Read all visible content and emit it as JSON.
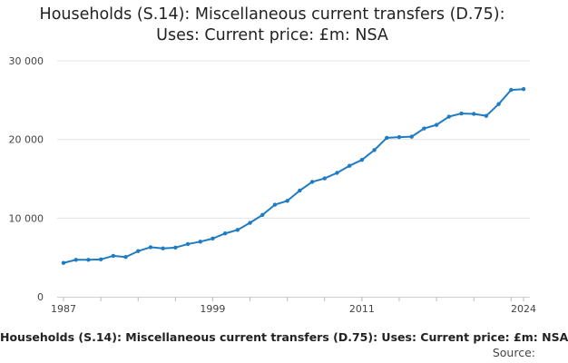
{
  "chart_data": {
    "type": "line",
    "title_line1": "Households (S.14): Miscellaneous current transfers (D.75):",
    "title_line2": "Uses: Current price: £m: NSA",
    "footer_title": "Households (S.14): Miscellaneous current transfers (D.75): Uses: Current price: £m: NSA",
    "source_label": "Source:",
    "xlabel": "",
    "ylabel": "",
    "xlim": [
      1987,
      2024
    ],
    "ylim": [
      0,
      30000
    ],
    "x_ticks": [
      1987,
      1999,
      2011,
      2024
    ],
    "x_tick_labels": [
      "1987",
      "1999",
      "2011",
      "2024"
    ],
    "y_ticks": [
      0,
      10000,
      20000,
      30000
    ],
    "y_tick_labels": [
      "0",
      "10 000",
      "20 000",
      "30 000"
    ],
    "grid": "horizontal",
    "legend": "none",
    "color": "#1f7cc2",
    "x": [
      1987,
      1988,
      1989,
      1990,
      1991,
      1992,
      1993,
      1994,
      1995,
      1996,
      1997,
      1998,
      1999,
      2000,
      2001,
      2002,
      2003,
      2004,
      2005,
      2006,
      2007,
      2008,
      2009,
      2010,
      2011,
      2012,
      2013,
      2014,
      2015,
      2016,
      2017,
      2018,
      2019,
      2020,
      2021,
      2022,
      2023,
      2024
    ],
    "series": [
      {
        "values": [
          4300,
          4700,
          4700,
          4750,
          5200,
          5050,
          5800,
          6300,
          6150,
          6250,
          6700,
          7000,
          7400,
          8050,
          8500,
          9400,
          10400,
          11700,
          12200,
          13500,
          14600,
          15050,
          15750,
          16650,
          17400,
          18650,
          20200,
          20300,
          20350,
          21400,
          21850,
          22900,
          23300,
          23250,
          23000,
          24500,
          26300,
          26400
        ]
      }
    ]
  }
}
